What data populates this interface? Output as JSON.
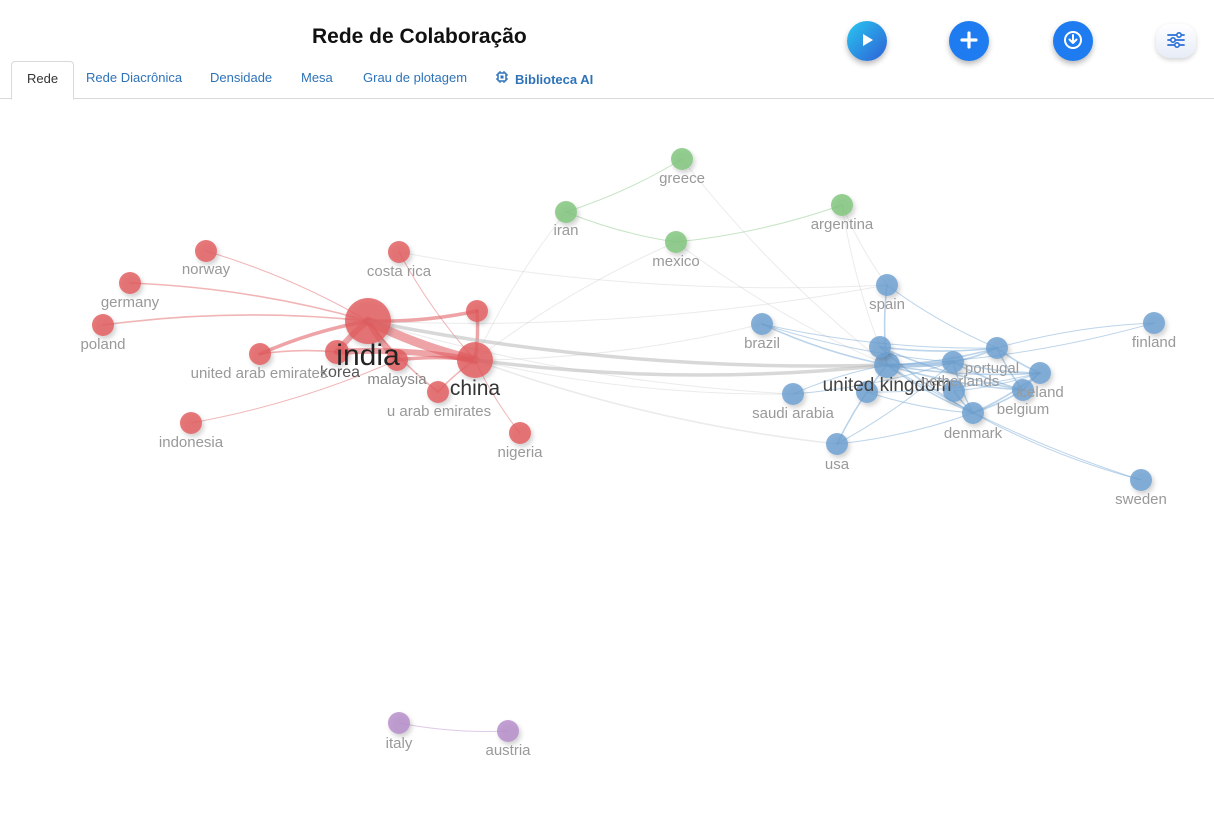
{
  "header": {
    "title": "Rede de Colaboração"
  },
  "toolbar": {
    "play_icon": "play-icon",
    "add_icon": "plus-icon",
    "download_icon": "download-icon",
    "settings_icon": "sliders-icon"
  },
  "tabs": [
    {
      "label": "Rede",
      "active": true
    },
    {
      "label": "Rede Diacrônica"
    },
    {
      "label": "Densidade"
    },
    {
      "label": "Mesa"
    },
    {
      "label": "Grau de plotagem"
    },
    {
      "label": "Biblioteca AI",
      "icon": "chip-icon"
    }
  ],
  "network": {
    "cluster_colors": {
      "red": "#e05a5e",
      "green": "#7fc47a",
      "blue": "#6b9fd0",
      "purple": "#b48bc9"
    },
    "nodes": [
      {
        "id": "india",
        "label": "india",
        "cluster": "red",
        "weight": 10
      },
      {
        "id": "china",
        "label": "china",
        "cluster": "red",
        "weight": 7
      },
      {
        "id": "korea",
        "label": "korea",
        "cluster": "red",
        "weight": 3
      },
      {
        "id": "malaysia",
        "label": "malaysia",
        "cluster": "red",
        "weight": 2
      },
      {
        "id": "norway",
        "label": "norway",
        "cluster": "red",
        "weight": 2
      },
      {
        "id": "costarica",
        "label": "costa rica",
        "cluster": "red",
        "weight": 2
      },
      {
        "id": "germany",
        "label": "germany",
        "cluster": "red",
        "weight": 2
      },
      {
        "id": "poland",
        "label": "poland",
        "cluster": "red",
        "weight": 2
      },
      {
        "id": "uae1",
        "label": "united arab emirates",
        "cluster": "red",
        "weight": 2
      },
      {
        "id": "uae2",
        "label": "u arab emirates",
        "cluster": "red",
        "weight": 2
      },
      {
        "id": "indonesia",
        "label": "indonesia",
        "cluster": "red",
        "weight": 2
      },
      {
        "id": "nigeria",
        "label": "nigeria",
        "cluster": "red",
        "weight": 2
      },
      {
        "id": "reda",
        "label": "",
        "cluster": "red",
        "weight": 2
      },
      {
        "id": "greece",
        "label": "greece",
        "cluster": "green",
        "weight": 2
      },
      {
        "id": "iran",
        "label": "iran",
        "cluster": "green",
        "weight": 2
      },
      {
        "id": "mexico",
        "label": "mexico",
        "cluster": "green",
        "weight": 2
      },
      {
        "id": "argentina",
        "label": "argentina",
        "cluster": "green",
        "weight": 2
      },
      {
        "id": "spain",
        "label": "spain",
        "cluster": "blue",
        "weight": 2
      },
      {
        "id": "finland",
        "label": "finland",
        "cluster": "blue",
        "weight": 2
      },
      {
        "id": "brazil",
        "label": "brazil",
        "cluster": "blue",
        "weight": 2
      },
      {
        "id": "uk",
        "label": "united kingdom",
        "cluster": "blue",
        "weight": 4
      },
      {
        "id": "uk2",
        "label": "",
        "cluster": "blue",
        "weight": 2
      },
      {
        "id": "ukb",
        "label": "",
        "cluster": "blue",
        "weight": 2
      },
      {
        "id": "saudi",
        "label": "saudi arabia",
        "cluster": "blue",
        "weight": 2
      },
      {
        "id": "netherlands",
        "label": "netherlands",
        "cluster": "blue",
        "weight": 2
      },
      {
        "id": "nl2",
        "label": "",
        "cluster": "blue",
        "weight": 2
      },
      {
        "id": "portugal",
        "label": "portugal",
        "cluster": "blue",
        "weight": 2
      },
      {
        "id": "iceland",
        "label": "iceland",
        "cluster": "blue",
        "weight": 2
      },
      {
        "id": "belgium",
        "label": "belgium",
        "cluster": "blue",
        "weight": 2
      },
      {
        "id": "denmark",
        "label": "denmark",
        "cluster": "blue",
        "weight": 2
      },
      {
        "id": "usa",
        "label": "usa",
        "cluster": "blue",
        "weight": 2
      },
      {
        "id": "sweden",
        "label": "sweden",
        "cluster": "blue",
        "weight": 2
      },
      {
        "id": "italy",
        "label": "italy",
        "cluster": "purple",
        "weight": 2
      },
      {
        "id": "austria",
        "label": "austria",
        "cluster": "purple",
        "weight": 2
      }
    ],
    "edges": [
      {
        "source": "india",
        "target": "china",
        "weight": 10
      },
      {
        "source": "india",
        "target": "korea",
        "weight": 6
      },
      {
        "source": "india",
        "target": "malaysia",
        "weight": 5
      },
      {
        "source": "china",
        "target": "korea",
        "weight": 5
      },
      {
        "source": "india",
        "target": "reda",
        "weight": 3
      },
      {
        "source": "china",
        "target": "reda",
        "weight": 3
      },
      {
        "source": "india",
        "target": "uae1",
        "weight": 3
      },
      {
        "source": "india",
        "target": "germany",
        "weight": 2
      },
      {
        "source": "india",
        "target": "poland",
        "weight": 2
      },
      {
        "source": "india",
        "target": "norway",
        "weight": 1
      },
      {
        "source": "india",
        "target": "uae2",
        "weight": 2
      },
      {
        "source": "china",
        "target": "uae2",
        "weight": 2
      },
      {
        "source": "china",
        "target": "nigeria",
        "weight": 1
      },
      {
        "source": "china",
        "target": "malaysia",
        "weight": 3
      },
      {
        "source": "korea",
        "target": "uae1",
        "weight": 2
      },
      {
        "source": "indonesia",
        "target": "malaysia",
        "weight": 1
      },
      {
        "source": "costarica",
        "target": "china",
        "weight": 1
      },
      {
        "source": "costarica",
        "target": "spain",
        "weight": 1
      },
      {
        "source": "india",
        "target": "uk",
        "weight": 4
      },
      {
        "source": "china",
        "target": "uk",
        "weight": 3
      },
      {
        "source": "china",
        "target": "usa",
        "weight": 2
      },
      {
        "source": "china",
        "target": "saudi",
        "weight": 1
      },
      {
        "source": "china",
        "target": "brazil",
        "weight": 1
      },
      {
        "source": "india",
        "target": "saudi",
        "weight": 1
      },
      {
        "source": "india",
        "target": "spain",
        "weight": 1
      },
      {
        "source": "iran",
        "target": "greece",
        "weight": 1
      },
      {
        "source": "iran",
        "target": "mexico",
        "weight": 1
      },
      {
        "source": "iran",
        "target": "china",
        "weight": 1
      },
      {
        "source": "mexico",
        "target": "argentina",
        "weight": 1
      },
      {
        "source": "mexico",
        "target": "uk",
        "weight": 1
      },
      {
        "source": "mexico",
        "target": "china",
        "weight": 1
      },
      {
        "source": "greece",
        "target": "uk",
        "weight": 1
      },
      {
        "source": "argentina",
        "target": "spain",
        "weight": 1
      },
      {
        "source": "argentina",
        "target": "uk",
        "weight": 1
      },
      {
        "source": "brazil",
        "target": "uk",
        "weight": 2
      },
      {
        "source": "brazil",
        "target": "portugal",
        "weight": 1
      },
      {
        "source": "brazil",
        "target": "netherlands",
        "weight": 1
      },
      {
        "source": "spain",
        "target": "uk",
        "weight": 2
      },
      {
        "source": "spain",
        "target": "portugal",
        "weight": 1
      },
      {
        "source": "uk",
        "target": "netherlands",
        "weight": 3
      },
      {
        "source": "uk",
        "target": "portugal",
        "weight": 2
      },
      {
        "source": "uk",
        "target": "iceland",
        "weight": 2
      },
      {
        "source": "uk",
        "target": "belgium",
        "weight": 2
      },
      {
        "source": "uk",
        "target": "denmark",
        "weight": 2
      },
      {
        "source": "uk",
        "target": "usa",
        "weight": 2
      },
      {
        "source": "uk",
        "target": "saudi",
        "weight": 1
      },
      {
        "source": "uk",
        "target": "finland",
        "weight": 1
      },
      {
        "source": "uk",
        "target": "sweden",
        "weight": 1
      },
      {
        "source": "uk2",
        "target": "portugal",
        "weight": 2
      },
      {
        "source": "uk2",
        "target": "denmark",
        "weight": 2
      },
      {
        "source": "uk2",
        "target": "belgium",
        "weight": 2
      },
      {
        "source": "ukb",
        "target": "denmark",
        "weight": 1
      },
      {
        "source": "ukb",
        "target": "iceland",
        "weight": 1
      },
      {
        "source": "netherlands",
        "target": "portugal",
        "weight": 2
      },
      {
        "source": "netherlands",
        "target": "iceland",
        "weight": 2
      },
      {
        "source": "netherlands",
        "target": "belgium",
        "weight": 2
      },
      {
        "source": "netherlands",
        "target": "denmark",
        "weight": 2
      },
      {
        "source": "nl2",
        "target": "denmark",
        "weight": 2
      },
      {
        "source": "nl2",
        "target": "iceland",
        "weight": 1
      },
      {
        "source": "portugal",
        "target": "iceland",
        "weight": 2
      },
      {
        "source": "portugal",
        "target": "belgium",
        "weight": 2
      },
      {
        "source": "iceland",
        "target": "belgium",
        "weight": 2
      },
      {
        "source": "denmark",
        "target": "belgium",
        "weight": 2
      },
      {
        "source": "denmark",
        "target": "iceland",
        "weight": 2
      },
      {
        "source": "usa",
        "target": "denmark",
        "weight": 1
      },
      {
        "source": "usa",
        "target": "netherlands",
        "weight": 1
      },
      {
        "source": "denmark",
        "target": "sweden",
        "weight": 1
      },
      {
        "source": "finland",
        "target": "portugal",
        "weight": 1
      },
      {
        "source": "saudi",
        "target": "netherlands",
        "weight": 1
      },
      {
        "source": "italy",
        "target": "austria",
        "weight": 1
      }
    ]
  }
}
